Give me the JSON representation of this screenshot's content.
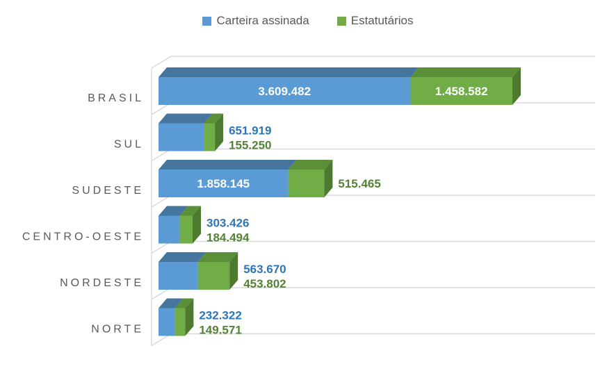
{
  "chart_data": {
    "type": "bar",
    "style": "3d-horizontal-stacked",
    "title": "",
    "categories": [
      "BRASIL",
      "SUL",
      "SUDESTE",
      "CENTRO-OESTE",
      "NORDESTE",
      "NORTE"
    ],
    "series": [
      {
        "name": "Carteira assinada",
        "values": [
          3609482,
          651919,
          1858145,
          303426,
          563670,
          232322
        ],
        "labels": [
          "3.609.482",
          "651.919",
          "1.858.145",
          "303.426",
          "563.670",
          "232.322"
        ]
      },
      {
        "name": "Estatutários",
        "values": [
          1458582,
          155250,
          515465,
          184494,
          453802,
          149571
        ],
        "labels": [
          "1.458.582",
          "155.250",
          "515.465",
          "184.494",
          "453.802",
          "149.571"
        ]
      }
    ],
    "label_inside": [
      [
        true,
        true
      ],
      [
        false,
        false
      ],
      [
        true,
        false
      ],
      [
        false,
        false
      ],
      [
        false,
        false
      ],
      [
        false,
        false
      ]
    ],
    "axis_range": [
      0,
      6000000
    ],
    "grid": true,
    "legend_position": "top"
  },
  "colors": {
    "series1_front": "#5B9BD5",
    "series1_top": "#46759E",
    "series1_side": "#3E688F",
    "series2_front": "#70AD47",
    "series2_top": "#5B8F38",
    "series2_side": "#4E7A2F",
    "value_label_series1": "#2E75B6",
    "value_label_series2": "#548235",
    "inside_label": "#FFFFFF",
    "category_label": "#595959",
    "legend_text": "#595959",
    "frame_line": "#D9D9D9"
  }
}
